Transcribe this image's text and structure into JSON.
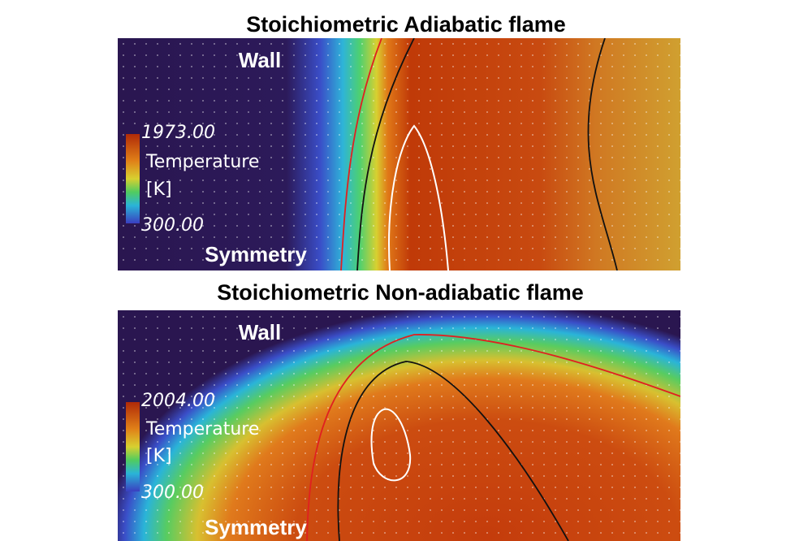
{
  "panels": [
    {
      "title": "Stoichiometric Adiabatic flame",
      "wall_label": "Wall",
      "symmetry_label": "Symmetry",
      "colorbar": {
        "max": "1973.00",
        "quantity": "Temperature",
        "unit": "[K]",
        "min": "300.00"
      }
    },
    {
      "title": "Stoichiometric Non-adiabatic flame",
      "wall_label": "Wall",
      "symmetry_label": "Symmetry",
      "colorbar": {
        "max": "2004.00",
        "quantity": "Temperature",
        "unit": "[K]",
        "min": "300.00"
      }
    }
  ]
}
